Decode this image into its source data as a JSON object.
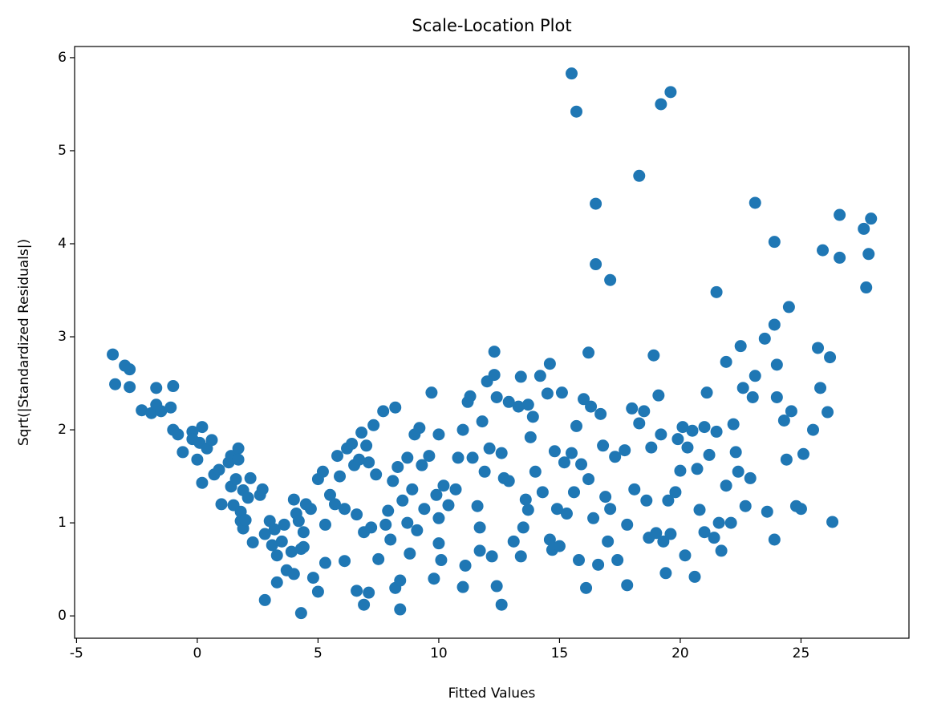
{
  "chart_data": {
    "type": "scatter",
    "title": "Scale-Location Plot",
    "x_label": "Fitted Values",
    "y_label": "Sqrt(|Standardized Residuals|)",
    "color": "#1f77b4",
    "x": [
      15.5,
      15.7,
      19.2,
      19.6,
      18.3,
      16.5,
      16.5,
      17.1,
      23.1,
      23.9,
      26.6,
      26.6,
      27.6,
      27.9,
      27.8,
      27.7,
      25.9,
      21.5,
      24.5,
      23.9,
      23.5,
      24.0,
      22.5,
      25.7,
      26.2,
      21.9,
      12.3,
      16.2,
      18.9,
      14.6,
      -3.5,
      -3.4,
      -3.0,
      -2.8,
      -2.8,
      -2.3,
      -1.9,
      -1.7,
      -1.7,
      -1.5,
      -1.1,
      -1.0,
      -1.0,
      -0.8,
      -0.6,
      -0.2,
      -0.2,
      0.0,
      0.1,
      0.2,
      0.2,
      0.4,
      0.6,
      0.7,
      0.9,
      1.0,
      1.3,
      1.4,
      1.4,
      1.5,
      1.6,
      1.7,
      1.7,
      1.8,
      1.8,
      1.9,
      1.9,
      2.0,
      2.1,
      2.2,
      2.3,
      2.6,
      2.7,
      2.8,
      2.8,
      3.0,
      3.1,
      3.2,
      3.3,
      3.3,
      3.5,
      3.6,
      3.7,
      3.9,
      4.0,
      4.0,
      4.1,
      4.2,
      4.3,
      4.3,
      4.4,
      4.4,
      4.5,
      4.7,
      4.8,
      5.0,
      5.0,
      5.2,
      5.3,
      5.3,
      5.5,
      5.7,
      5.8,
      5.9,
      6.1,
      6.1,
      6.2,
      6.4,
      6.5,
      6.6,
      6.6,
      6.7,
      6.8,
      6.9,
      6.9,
      7.0,
      7.1,
      7.1,
      7.2,
      7.3,
      7.4,
      7.5,
      7.7,
      7.8,
      7.9,
      8.0,
      8.1,
      8.2,
      8.2,
      8.3,
      8.4,
      8.4,
      8.5,
      8.7,
      8.7,
      8.8,
      8.9,
      9.0,
      9.1,
      9.2,
      9.3,
      9.4,
      9.6,
      9.7,
      9.8,
      9.9,
      10.0,
      10.0,
      10.0,
      10.1,
      10.2,
      10.4,
      10.7,
      10.8,
      11.0,
      11.0,
      11.1,
      11.2,
      11.3,
      11.4,
      11.6,
      11.7,
      11.7,
      11.8,
      11.9,
      12.0,
      12.1,
      12.2,
      12.3,
      12.4,
      12.4,
      12.6,
      12.6,
      12.7,
      12.9,
      12.9,
      13.1,
      13.3,
      13.4,
      13.4,
      13.5,
      13.6,
      13.7,
      13.7,
      13.8,
      13.9,
      14.0,
      14.2,
      14.3,
      14.5,
      14.6,
      14.7,
      14.8,
      14.9,
      15.0,
      15.1,
      15.2,
      15.3,
      15.5,
      15.6,
      15.7,
      15.8,
      15.9,
      16.0,
      16.1,
      16.2,
      16.3,
      16.4,
      16.6,
      16.7,
      16.8,
      16.9,
      17.0,
      17.1,
      17.3,
      17.4,
      17.7,
      17.8,
      17.8,
      18.0,
      18.1,
      18.3,
      18.5,
      18.6,
      18.7,
      18.8,
      19.0,
      19.1,
      19.2,
      19.3,
      19.4,
      19.5,
      19.6,
      19.8,
      19.9,
      20.0,
      20.1,
      20.2,
      20.3,
      20.5,
      20.6,
      20.7,
      20.8,
      21.0,
      21.0,
      21.1,
      21.2,
      21.4,
      21.5,
      21.6,
      21.7,
      21.9,
      22.1,
      22.2,
      22.3,
      22.4,
      22.6,
      22.7,
      22.9,
      23.0,
      23.1,
      23.6,
      23.9,
      24.0,
      24.3,
      24.4,
      24.6,
      24.8,
      25.0,
      25.1,
      25.5,
      25.8,
      26.1,
      26.3
    ],
    "values": [
      5.83,
      5.42,
      5.5,
      5.63,
      4.73,
      4.43,
      3.78,
      3.61,
      4.44,
      4.02,
      4.31,
      3.85,
      4.16,
      4.27,
      3.89,
      3.53,
      3.93,
      3.48,
      3.32,
      3.13,
      2.98,
      2.7,
      2.9,
      2.88,
      2.78,
      2.73,
      2.84,
      2.83,
      2.8,
      2.71,
      2.81,
      2.49,
      2.69,
      2.65,
      2.46,
      2.21,
      2.18,
      2.27,
      2.45,
      2.2,
      2.24,
      2.47,
      2.0,
      1.95,
      1.76,
      1.98,
      1.9,
      1.68,
      1.86,
      2.03,
      1.43,
      1.8,
      1.89,
      1.52,
      1.57,
      1.2,
      1.65,
      1.39,
      1.72,
      1.19,
      1.47,
      1.8,
      1.68,
      1.02,
      1.12,
      1.35,
      0.94,
      1.03,
      1.27,
      1.48,
      0.79,
      1.3,
      1.36,
      0.17,
      0.88,
      1.02,
      0.76,
      0.93,
      0.65,
      0.36,
      0.8,
      0.98,
      0.49,
      0.69,
      1.25,
      0.45,
      1.1,
      1.02,
      0.72,
      0.03,
      0.9,
      0.74,
      1.2,
      1.15,
      0.41,
      1.47,
      0.26,
      1.55,
      0.98,
      0.57,
      1.3,
      1.2,
      1.72,
      1.5,
      0.59,
      1.15,
      1.8,
      1.85,
      1.62,
      1.09,
      0.27,
      1.68,
      1.97,
      0.9,
      0.12,
      1.83,
      0.25,
      1.65,
      0.95,
      2.05,
      1.52,
      0.61,
      2.2,
      0.98,
      1.13,
      0.82,
      1.45,
      2.24,
      0.3,
      1.6,
      0.38,
      0.07,
      1.24,
      1.0,
      1.7,
      0.67,
      1.36,
      1.95,
      0.92,
      2.02,
      1.62,
      1.15,
      1.72,
      2.4,
      0.4,
      1.3,
      1.95,
      1.05,
      0.78,
      0.6,
      1.4,
      1.19,
      1.36,
      1.7,
      2.0,
      0.31,
      0.54,
      2.3,
      2.36,
      1.7,
      1.18,
      0.7,
      0.95,
      2.09,
      1.55,
      2.52,
      1.8,
      0.64,
      2.59,
      2.35,
      0.32,
      0.12,
      1.75,
      1.48,
      1.45,
      2.3,
      0.8,
      2.25,
      0.64,
      2.57,
      0.95,
      1.25,
      2.27,
      1.14,
      1.92,
      2.14,
      1.55,
      2.58,
      1.33,
      2.39,
      0.82,
      0.71,
      1.77,
      1.15,
      0.75,
      2.4,
      1.65,
      1.1,
      1.75,
      1.33,
      2.04,
      0.6,
      1.63,
      2.33,
      0.3,
      1.47,
      2.25,
      1.05,
      0.55,
      2.17,
      1.83,
      1.28,
      0.8,
      1.15,
      1.71,
      0.6,
      1.78,
      0.98,
      0.33,
      2.23,
      1.36,
      2.07,
      2.2,
      1.24,
      0.84,
      1.81,
      0.89,
      2.37,
      1.95,
      0.8,
      0.46,
      1.24,
      0.88,
      1.33,
      1.9,
      1.56,
      2.03,
      0.65,
      1.81,
      1.99,
      0.42,
      1.58,
      1.14,
      0.9,
      2.03,
      2.4,
      1.73,
      0.84,
      1.98,
      1.0,
      0.7,
      1.4,
      1.0,
      2.06,
      1.76,
      1.55,
      2.45,
      1.18,
      1.48,
      2.35,
      2.58,
      1.12,
      0.82,
      2.35,
      2.1,
      1.68,
      2.2,
      1.18,
      1.15,
      1.74,
      2.0,
      2.45,
      2.19,
      1.01
    ],
    "xlim": [
      -5.08,
      29.47
    ],
    "ylim": [
      -0.24,
      6.12
    ],
    "xticks": [
      -5,
      0,
      5,
      10,
      15,
      20,
      25
    ],
    "yticks": [
      0,
      1,
      2,
      3,
      4,
      5,
      6
    ]
  }
}
